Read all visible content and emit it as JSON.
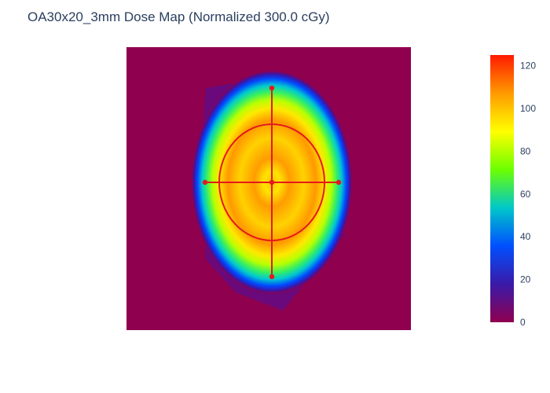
{
  "chart_data": {
    "type": "heatmap",
    "title": "OA30x20_3mm Dose Map (Normalized 300.0 cGy)",
    "xlabel": "",
    "ylabel": "",
    "colorscale": {
      "name": "rainbow",
      "zmin": 0,
      "zmax": 125,
      "ticks": [
        0,
        20,
        40,
        60,
        80,
        100,
        120
      ],
      "stops": [
        "#8f004f",
        "#3a1aa8",
        "#0050ff",
        "#00c8c8",
        "#6cff00",
        "#ffff00",
        "#ff9a00",
        "#ff1a00"
      ]
    },
    "background_value": 0,
    "field_region": "elliptical dose distribution, peak approx. 100-110 with a lower-dose ring of approx. 90-95 around the centre",
    "overlay": {
      "color": "#e31a1c",
      "shapes": [
        "ellipse",
        "horizontal profile line",
        "vertical profile line",
        "center point",
        "endpoint markers"
      ]
    }
  }
}
